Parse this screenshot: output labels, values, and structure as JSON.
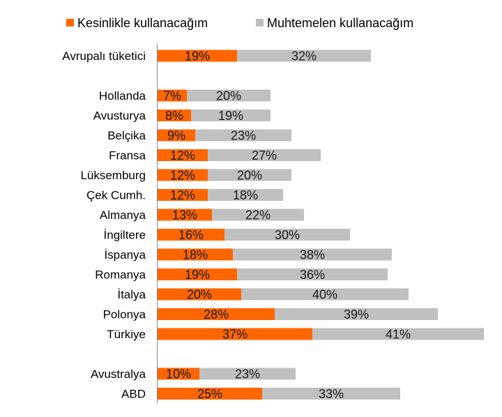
{
  "chart_data": {
    "type": "bar",
    "orientation": "horizontal",
    "stacked": true,
    "categories": [
      "Avrupalı tüketici",
      "Hollanda",
      "Avusturya",
      "Belçika",
      "Fransa",
      "Lüksemburg",
      "Çek Cumh.",
      "Almanya",
      "İngiltere",
      "İspanya",
      "Romanya",
      "İtalya",
      "Polonya",
      "Türkiye",
      "Avustralya",
      "ABD"
    ],
    "series": [
      {
        "name": "Kesinlikle kullanacağım",
        "color": "#ff6600",
        "values": [
          19,
          7,
          8,
          9,
          12,
          12,
          12,
          13,
          16,
          18,
          19,
          20,
          28,
          37,
          10,
          25
        ],
        "labels": [
          "19%",
          "7%",
          "8%",
          "9%",
          "12%",
          "12%",
          "12%",
          "13%",
          "16%",
          "18%",
          "19%",
          "20%",
          "28%",
          "37%",
          "10%",
          "25%"
        ]
      },
      {
        "name": "Muhtemelen kullanacağım",
        "color": "#c0c0c0",
        "values": [
          32,
          20,
          19,
          23,
          27,
          20,
          18,
          22,
          30,
          38,
          36,
          40,
          39,
          41,
          23,
          33
        ],
        "labels": [
          "32%",
          "20%",
          "19%",
          "23%",
          "27%",
          "20%",
          "18%",
          "22%",
          "30%",
          "38%",
          "36%",
          "40%",
          "39%",
          "41%",
          "23%",
          "33%"
        ]
      }
    ],
    "groups": [
      [
        0
      ],
      [
        1,
        2,
        3,
        4,
        5,
        6,
        7,
        8,
        9,
        10,
        11,
        12,
        13
      ],
      [
        14,
        15
      ]
    ],
    "legend_position": "top",
    "grid": false,
    "axis_line_color": "#888888"
  }
}
